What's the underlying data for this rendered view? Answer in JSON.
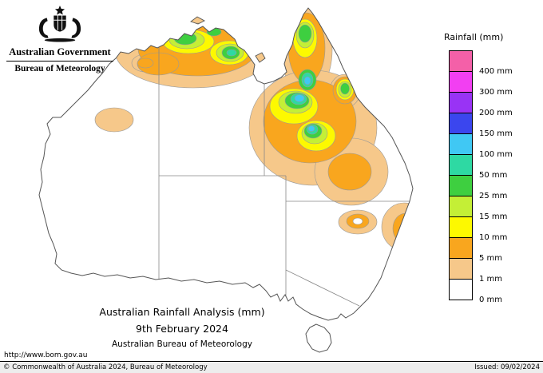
{
  "branding": {
    "government": "Australian Government",
    "bureau": "Bureau of Meteorology"
  },
  "legend": {
    "title": "Rainfall (mm)",
    "entries": [
      {
        "label": "400 mm",
        "color": "#f460a8"
      },
      {
        "label": "300 mm",
        "color": "#f23ff2"
      },
      {
        "label": "200 mm",
        "color": "#9933f5"
      },
      {
        "label": "150 mm",
        "color": "#3b46ee"
      },
      {
        "label": "100 mm",
        "color": "#40c8f4"
      },
      {
        "label": "50 mm",
        "color": "#2ed9a3"
      },
      {
        "label": "25 mm",
        "color": "#3ecf40"
      },
      {
        "label": "15 mm",
        "color": "#c4ef36"
      },
      {
        "label": "10 mm",
        "color": "#fdf900"
      },
      {
        "label": "5 mm",
        "color": "#f9a61e"
      },
      {
        "label": "1 mm",
        "color": "#f6c88a"
      },
      {
        "label": "0 mm",
        "color": "#ffffff"
      }
    ]
  },
  "caption": {
    "line1": "Australian Rainfall Analysis (mm)",
    "line2": "9th February 2024",
    "line3": "Australian Bureau of Meteorology"
  },
  "links": {
    "website": "http://www.bom.gov.au"
  },
  "statusbar": {
    "copyright": "© Commonwealth of Australia 2024, Bureau of Meteorology",
    "issued": "Issued: 09/02/2024"
  },
  "map": {
    "region": "Australia",
    "content": "rainfall contour analysis"
  }
}
